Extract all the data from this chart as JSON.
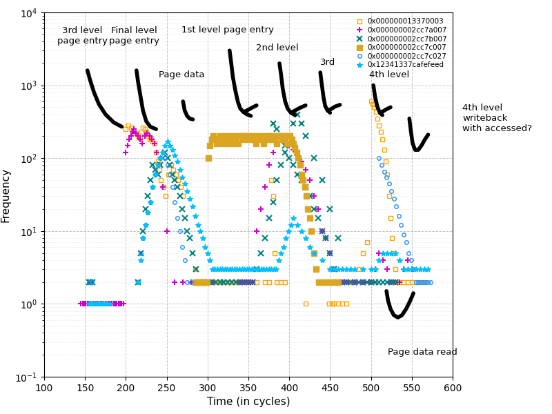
{
  "title": "",
  "xlabel": "Time (in cycles)",
  "ylabel": "Frequency",
  "xlim": [
    100,
    600
  ],
  "ylim_log": [
    0.1,
    10000
  ],
  "series": [
    {
      "label": "0x000000013370003",
      "color": "#FFA500",
      "marker": "s",
      "markersize": 4,
      "markerfacecolor": "none",
      "markeredgecolor": "#FFA500",
      "x": [
        200,
        203,
        206,
        209,
        212,
        215,
        217,
        219,
        221,
        223,
        225,
        227,
        229,
        231,
        233,
        235,
        237,
        239,
        241,
        243,
        246,
        249,
        252,
        255,
        258,
        261,
        264,
        267,
        270,
        285,
        290,
        295,
        300,
        305,
        310,
        315,
        320,
        325,
        330,
        335,
        340,
        345,
        350,
        360,
        370,
        375,
        378,
        380,
        382,
        385,
        390,
        395,
        420,
        440,
        443,
        446,
        449,
        452,
        455,
        460,
        465,
        470,
        475,
        480,
        485,
        490,
        495,
        500,
        502,
        504,
        506,
        508,
        510,
        512,
        514,
        516,
        518,
        520,
        522,
        524,
        526,
        528,
        530,
        532,
        535,
        540,
        545,
        550,
        555,
        560,
        565
      ],
      "y": [
        250,
        280,
        260,
        240,
        220,
        200,
        190,
        230,
        260,
        250,
        230,
        200,
        180,
        190,
        170,
        160,
        120,
        90,
        70,
        50,
        40,
        30,
        60,
        80,
        70,
        60,
        50,
        40,
        30,
        3,
        2,
        2,
        2,
        2,
        2,
        2,
        2,
        2,
        2,
        2,
        2,
        2,
        2,
        2,
        2,
        2,
        50,
        30,
        5,
        2,
        2,
        2,
        1,
        2,
        2,
        2,
        1,
        1,
        1,
        1,
        1,
        1,
        2,
        2,
        3,
        5,
        7,
        600,
        550,
        500,
        430,
        350,
        280,
        230,
        180,
        130,
        90,
        60,
        30,
        15,
        8,
        5,
        3,
        2,
        2,
        2,
        2,
        2,
        2,
        2,
        2
      ]
    },
    {
      "label": "0x000000002cc7a007",
      "color": "#CC00CC",
      "marker": "+",
      "markersize": 6,
      "markerfacecolor": "#CC00CC",
      "x": [
        145,
        147,
        149,
        151,
        153,
        155,
        157,
        159,
        161,
        163,
        165,
        167,
        169,
        171,
        173,
        175,
        177,
        179,
        181,
        183,
        185,
        187,
        189,
        191,
        193,
        195,
        197,
        200,
        202,
        204,
        206,
        208,
        210,
        212,
        215,
        217,
        220,
        223,
        226,
        229,
        232,
        235,
        238,
        241,
        245,
        250,
        260,
        270,
        280,
        290,
        300,
        305,
        340,
        345,
        350,
        355,
        360,
        365,
        370,
        375,
        380,
        385,
        390,
        395,
        400,
        405,
        410,
        415,
        420,
        425,
        430,
        435,
        440,
        445,
        450,
        455,
        460,
        465,
        470,
        480,
        490,
        500,
        505,
        510,
        515,
        520,
        525,
        530,
        535,
        540,
        545,
        550
      ],
      "y": [
        1,
        1,
        1,
        1,
        1,
        1,
        1,
        1,
        1,
        1,
        1,
        1,
        1,
        1,
        1,
        1,
        1,
        1,
        1,
        1,
        1,
        1,
        1,
        1,
        1,
        1,
        1,
        120,
        150,
        180,
        200,
        230,
        250,
        220,
        200,
        180,
        160,
        200,
        220,
        200,
        180,
        160,
        120,
        80,
        40,
        10,
        2,
        2,
        2,
        2,
        2,
        2,
        2,
        2,
        2,
        2,
        10,
        20,
        40,
        80,
        120,
        160,
        200,
        180,
        150,
        130,
        110,
        90,
        70,
        50,
        30,
        20,
        10,
        8,
        5,
        3,
        2,
        2,
        2,
        2,
        2,
        2,
        3,
        5,
        4,
        3,
        2,
        2,
        2,
        3,
        4,
        3
      ]
    },
    {
      "label": "0x000000002cc7b007",
      "color": "#008080",
      "marker": "x",
      "markersize": 6,
      "markerfacecolor": "#008080",
      "x": [
        155,
        157,
        159,
        215,
        218,
        221,
        224,
        227,
        230,
        233,
        236,
        239,
        242,
        245,
        248,
        251,
        254,
        257,
        260,
        263,
        266,
        269,
        272,
        275,
        278,
        282,
        286,
        290,
        295,
        300,
        305,
        310,
        315,
        320,
        325,
        330,
        335,
        340,
        345,
        350,
        355,
        360,
        365,
        370,
        375,
        380,
        385,
        390,
        395,
        400,
        405,
        410,
        415,
        420,
        430,
        440,
        450,
        460,
        380,
        385,
        390,
        395,
        400,
        405,
        410,
        415,
        420,
        425,
        430,
        435,
        440,
        445,
        450,
        455,
        460,
        465,
        470,
        475,
        480,
        485,
        490,
        495,
        500,
        505,
        510,
        515,
        520,
        525,
        530
      ],
      "y": [
        2,
        2,
        2,
        2,
        5,
        10,
        20,
        30,
        50,
        80,
        70,
        60,
        80,
        100,
        120,
        100,
        80,
        60,
        50,
        40,
        30,
        20,
        15,
        10,
        8,
        5,
        3,
        2,
        2,
        2,
        2,
        2,
        2,
        2,
        2,
        2,
        2,
        2,
        2,
        2,
        2,
        3,
        5,
        8,
        15,
        25,
        50,
        80,
        120,
        200,
        300,
        400,
        300,
        200,
        100,
        50,
        20,
        8,
        300,
        250,
        200,
        150,
        100,
        80,
        60,
        50,
        40,
        30,
        20,
        15,
        10,
        8,
        5,
        3,
        2,
        2,
        2,
        2,
        2,
        2,
        2,
        2,
        2,
        2,
        2,
        2,
        2,
        2,
        2
      ]
    },
    {
      "label": "0x000000002cc7c007",
      "color": "#DAA520",
      "marker": "s",
      "markersize": 6,
      "markerfacecolor": "#DAA520",
      "x": [
        285,
        287,
        289,
        291,
        293,
        295,
        297,
        299,
        301,
        303,
        305,
        307,
        309,
        311,
        313,
        315,
        317,
        319,
        321,
        323,
        325,
        327,
        329,
        331,
        333,
        335,
        337,
        339,
        341,
        343,
        345,
        347,
        349,
        351,
        353,
        355,
        357,
        359,
        361,
        363,
        365,
        367,
        369,
        371,
        373,
        375,
        377,
        379,
        381,
        383,
        385,
        387,
        389,
        391,
        393,
        395,
        397,
        399,
        401,
        403,
        405,
        407,
        409,
        411,
        413,
        415,
        417,
        419,
        421,
        423,
        425,
        427,
        430,
        433,
        436,
        440,
        445,
        450,
        455,
        460
      ],
      "y": [
        2,
        2,
        2,
        2,
        2,
        2,
        2,
        2,
        100,
        150,
        180,
        200,
        180,
        160,
        180,
        200,
        180,
        160,
        200,
        180,
        160,
        200,
        180,
        160,
        200,
        180,
        160,
        200,
        200,
        180,
        200,
        200,
        180,
        200,
        180,
        200,
        180,
        160,
        200,
        180,
        200,
        180,
        160,
        200,
        180,
        200,
        200,
        180,
        200,
        180,
        160,
        200,
        200,
        180,
        200,
        180,
        160,
        200,
        200,
        180,
        160,
        140,
        120,
        100,
        80,
        60,
        50,
        40,
        30,
        20,
        15,
        10,
        5,
        3,
        2,
        2,
        2,
        2,
        2,
        2
      ]
    },
    {
      "label": "0x000000002cc7c027",
      "color": "#1E90FF",
      "marker": "o",
      "markersize": 4,
      "markerfacecolor": "none",
      "markeredgecolor": "#1E90FF",
      "x": [
        155,
        158,
        215,
        218,
        221,
        224,
        227,
        230,
        233,
        236,
        239,
        242,
        245,
        248,
        251,
        254,
        257,
        260,
        263,
        266,
        269,
        272,
        275,
        280,
        510,
        513,
        516,
        519,
        522,
        525,
        528,
        531,
        534,
        537,
        540,
        543,
        546,
        549,
        552,
        555,
        558,
        561,
        564,
        567,
        570,
        573
      ],
      "y": [
        2,
        2,
        2,
        5,
        8,
        12,
        18,
        25,
        40,
        60,
        80,
        100,
        120,
        100,
        80,
        60,
        40,
        25,
        15,
        10,
        6,
        4,
        2,
        2,
        100,
        80,
        65,
        55,
        45,
        35,
        28,
        22,
        16,
        12,
        9,
        7,
        5,
        4,
        3,
        2,
        2,
        2,
        2,
        2,
        2,
        2
      ]
    },
    {
      "label": "0x12341337cafefeed",
      "color": "#00BFFF",
      "marker": "*",
      "markersize": 6,
      "markerfacecolor": "#00BFFF",
      "x": [
        155,
        157,
        159,
        161,
        163,
        165,
        167,
        169,
        171,
        173,
        175,
        177,
        180,
        215,
        218,
        221,
        224,
        227,
        230,
        233,
        236,
        239,
        242,
        245,
        248,
        251,
        254,
        257,
        260,
        263,
        266,
        269,
        272,
        275,
        278,
        282,
        285,
        288,
        291,
        294,
        297,
        300,
        303,
        306,
        309,
        312,
        315,
        318,
        321,
        324,
        327,
        330,
        333,
        336,
        339,
        342,
        345,
        348,
        351,
        354,
        357,
        360,
        363,
        366,
        369,
        372,
        375,
        378,
        381,
        384,
        387,
        390,
        393,
        396,
        399,
        402,
        405,
        410,
        415,
        420,
        425,
        430,
        440,
        450,
        455,
        460,
        465,
        470,
        475,
        480,
        490,
        500,
        505,
        510,
        515,
        520,
        525,
        530,
        535,
        540,
        545,
        550,
        555,
        560,
        565,
        570
      ],
      "y": [
        1,
        1,
        1,
        1,
        1,
        1,
        1,
        1,
        1,
        1,
        1,
        1,
        1,
        2,
        4,
        8,
        12,
        18,
        25,
        40,
        60,
        80,
        100,
        120,
        150,
        170,
        150,
        130,
        110,
        90,
        70,
        55,
        45,
        35,
        28,
        22,
        16,
        12,
        10,
        8,
        6,
        5,
        4,
        3,
        3,
        3,
        3,
        3,
        3,
        3,
        3,
        3,
        3,
        3,
        3,
        3,
        3,
        3,
        3,
        3,
        3,
        3,
        3,
        3,
        3,
        3,
        3,
        3,
        3,
        3,
        4,
        5,
        6,
        8,
        10,
        12,
        15,
        12,
        10,
        8,
        6,
        5,
        4,
        3,
        3,
        3,
        3,
        3,
        3,
        3,
        3,
        3,
        3,
        4,
        5,
        5,
        5,
        5,
        4,
        3,
        3,
        3,
        3,
        3,
        3,
        3
      ]
    }
  ]
}
